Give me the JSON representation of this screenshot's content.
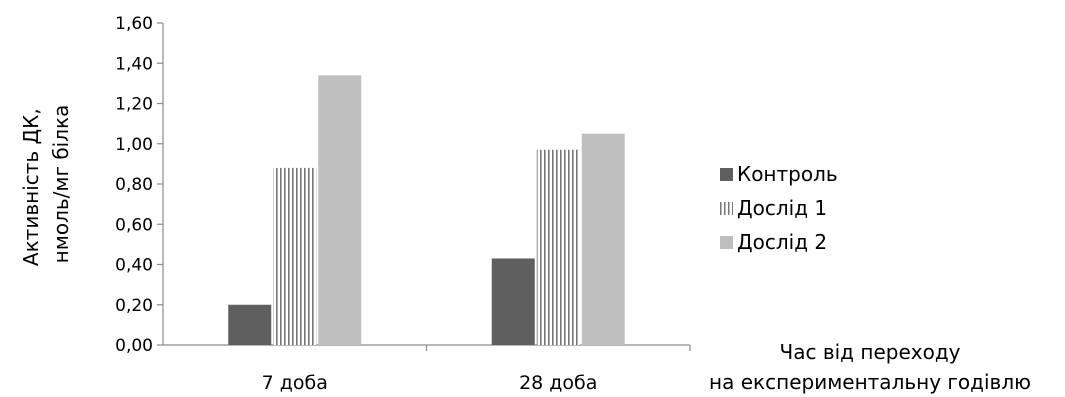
{
  "chart_data": {
    "type": "bar",
    "categories": [
      "7 доба",
      "28 доба"
    ],
    "series": [
      {
        "name": "Контроль",
        "values": [
          0.2,
          0.43
        ],
        "color": "#5f5f5f",
        "pattern": "solid"
      },
      {
        "name": "Дослід 1",
        "values": [
          0.88,
          0.97
        ],
        "color": "#ffffff",
        "pattern": "vertical-stripes"
      },
      {
        "name": "Дослід 2",
        "values": [
          1.34,
          1.05
        ],
        "color": "#bfbfbf",
        "pattern": "solid"
      }
    ],
    "ylim": [
      0,
      1.6
    ],
    "yticks": [
      "0,00",
      "0,20",
      "0,40",
      "0,60",
      "0,80",
      "1,00",
      "1,20",
      "1,40",
      "1,60"
    ],
    "ylabel_line1": "Активність ДК,",
    "ylabel_line2": "нмоль/мг білка",
    "xlabel_line1": "Час від переходу",
    "xlabel_line2": "на експериментальну годівлю",
    "grid": false,
    "legend_position": "right"
  }
}
